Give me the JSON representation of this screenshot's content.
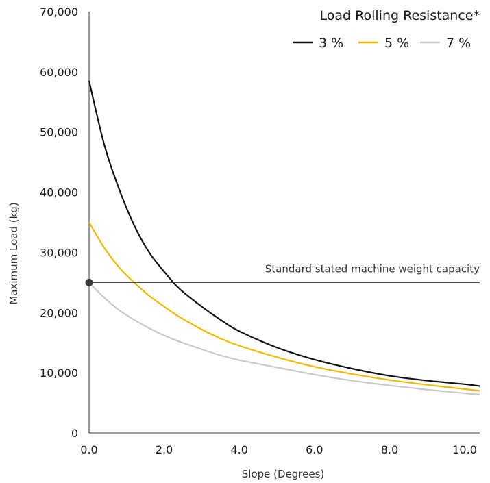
{
  "chart_data": {
    "type": "line",
    "xlabel": "Slope (Degrees)",
    "ylabel": "Maximum Load (kg)",
    "xlim": [
      0,
      10.4
    ],
    "ylim": [
      0,
      70000
    ],
    "x_ticks": [
      0,
      2,
      4,
      6,
      8,
      10
    ],
    "x_tick_labels": [
      "0.0",
      "2.0",
      "4.0",
      "6.0",
      "8.0",
      "10.0"
    ],
    "y_ticks": [
      0,
      10000,
      20000,
      30000,
      40000,
      50000,
      60000,
      70000
    ],
    "y_tick_labels": [
      "0",
      "10,000",
      "20,000",
      "30,000",
      "40,000",
      "50,000",
      "60,000",
      "70,000"
    ],
    "grid": false,
    "legend": {
      "title": "Load Rolling Resistance*",
      "placement": "top-right"
    },
    "series": [
      {
        "name": "3 %",
        "color": "#111111",
        "x": [
          0,
          0.4,
          0.8,
          1.2,
          1.6,
          2.0,
          2.4,
          3.0,
          3.5,
          4.0,
          5.0,
          6.0,
          7.0,
          8.0,
          9.0,
          10.0,
          10.4
        ],
        "y": [
          58500,
          48000,
          40500,
          34500,
          30000,
          26800,
          24000,
          21000,
          18800,
          16900,
          14200,
          12200,
          10700,
          9500,
          8700,
          8100,
          7800
        ]
      },
      {
        "name": "5 %",
        "color": "#f5b800",
        "x": [
          0,
          0.4,
          0.8,
          1.2,
          1.6,
          2.0,
          2.4,
          3.0,
          3.5,
          4.0,
          5.0,
          6.0,
          7.0,
          8.0,
          9.0,
          10.0,
          10.4
        ],
        "y": [
          35000,
          30800,
          27500,
          25000,
          22800,
          21000,
          19300,
          17200,
          15700,
          14500,
          12600,
          11000,
          9800,
          8800,
          8000,
          7300,
          7000
        ]
      },
      {
        "name": "7 %",
        "color": "#c8c8c8",
        "x": [
          0,
          0.4,
          0.8,
          1.2,
          1.6,
          2.0,
          2.4,
          3.0,
          3.5,
          4.0,
          5.0,
          6.0,
          7.0,
          8.0,
          9.0,
          10.0,
          10.4
        ],
        "y": [
          25000,
          22500,
          20400,
          18800,
          17400,
          16200,
          15200,
          13900,
          12900,
          12100,
          10900,
          9700,
          8700,
          7900,
          7200,
          6600,
          6400
        ]
      }
    ],
    "reference_line": {
      "label": "Standard stated machine weight capacity",
      "y": 25000,
      "marker_x": 0,
      "color": "#333333"
    }
  }
}
